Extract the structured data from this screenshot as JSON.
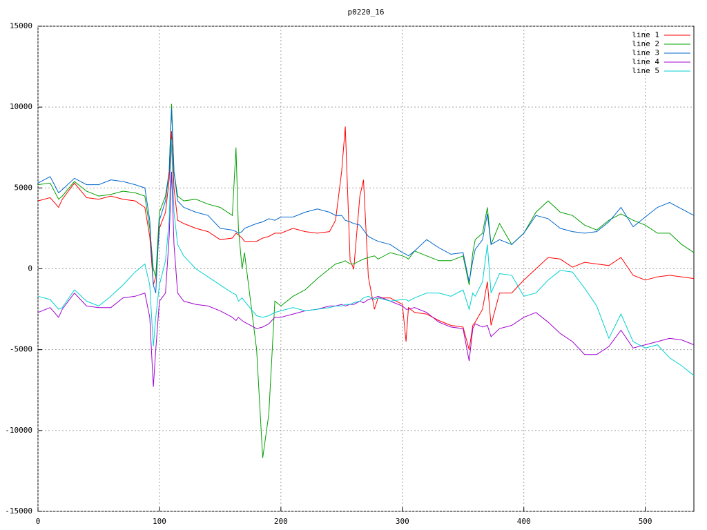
{
  "chart_data": {
    "type": "line",
    "title": "p0220_16",
    "x": [
      0,
      10,
      17,
      20,
      30,
      40,
      50,
      60,
      70,
      80,
      88,
      92,
      95,
      97,
      100,
      105,
      108,
      110,
      112,
      115,
      120,
      130,
      140,
      150,
      160,
      163,
      165,
      168,
      170,
      180,
      185,
      190,
      195,
      200,
      210,
      220,
      230,
      240,
      245,
      250,
      253,
      257,
      260,
      265,
      268,
      272,
      277,
      280,
      290,
      300,
      303,
      305,
      310,
      320,
      330,
      340,
      350,
      355,
      358,
      360,
      366,
      370,
      373,
      380,
      390,
      400,
      410,
      420,
      430,
      440,
      450,
      460,
      470,
      480,
      490,
      500,
      510,
      520,
      530,
      540
    ],
    "series": [
      {
        "name": "line 1",
        "color": "#ff0000",
        "values": [
          4200,
          4400,
          3800,
          4300,
          5300,
          4400,
          4300,
          4500,
          4300,
          4200,
          3800,
          2000,
          -1000,
          -500,
          2500,
          3500,
          5500,
          8500,
          5000,
          3000,
          2800,
          2500,
          2300,
          1800,
          1900,
          2200,
          2100,
          1900,
          1700,
          1700,
          1900,
          2000,
          2200,
          2200,
          2500,
          2300,
          2200,
          2300,
          3000,
          6000,
          8800,
          500,
          0,
          4500,
          5500,
          -500,
          -2500,
          -1800,
          -1800,
          -2200,
          -4500,
          -2400,
          -2700,
          -2800,
          -3200,
          -3500,
          -3600,
          -5000,
          -3500,
          -3300,
          -2500,
          -800,
          -3500,
          -1500,
          -1500,
          -700,
          0,
          700,
          600,
          100,
          400,
          300,
          200,
          700,
          -400,
          -700,
          -500,
          -400,
          -500,
          -600
        ]
      },
      {
        "name": "line 2",
        "color": "#00a000",
        "values": [
          5200,
          5300,
          4300,
          4500,
          5400,
          4800,
          4500,
          4600,
          4800,
          4700,
          4500,
          2500,
          0,
          -500,
          3500,
          4500,
          6000,
          10200,
          6000,
          4500,
          4200,
          4300,
          4000,
          3800,
          3300,
          7500,
          2500,
          0,
          1000,
          -5000,
          -11700,
          -9000,
          -2000,
          -2300,
          -1700,
          -1300,
          -600,
          0,
          300,
          400,
          500,
          300,
          300,
          500,
          600,
          700,
          800,
          600,
          1000,
          800,
          700,
          600,
          1100,
          800,
          500,
          500,
          800,
          -1000,
          1000,
          1800,
          2200,
          3800,
          1500,
          2800,
          1500,
          2200,
          3500,
          4200,
          3500,
          3300,
          2700,
          2400,
          3000,
          3400,
          3000,
          2700,
          2200,
          2200,
          1500,
          1000
        ]
      },
      {
        "name": "line 3",
        "color": "#0066cc",
        "values": [
          5300,
          5700,
          4700,
          4900,
          5600,
          5200,
          5200,
          5500,
          5400,
          5200,
          5000,
          3000,
          -1000,
          -1500,
          3000,
          4200,
          6000,
          9900,
          6000,
          4200,
          3800,
          3500,
          3300,
          2500,
          2400,
          2300,
          2200,
          2300,
          2500,
          2800,
          2900,
          3100,
          3000,
          3200,
          3200,
          3500,
          3700,
          3500,
          3300,
          3300,
          3000,
          2900,
          2800,
          2700,
          2400,
          2000,
          1800,
          1700,
          1500,
          1000,
          900,
          800,
          1100,
          1800,
          1300,
          900,
          1000,
          -800,
          500,
          1200,
          1800,
          3400,
          1500,
          1800,
          1500,
          2200,
          3300,
          3100,
          2500,
          2300,
          2200,
          2300,
          2900,
          3800,
          2600,
          3200,
          3800,
          4100,
          3700,
          3300
        ]
      },
      {
        "name": "line 4",
        "color": "#a000d0",
        "values": [
          -2700,
          -2400,
          -3000,
          -2500,
          -1500,
          -2300,
          -2400,
          -2400,
          -1800,
          -1700,
          -1500,
          -3000,
          -7300,
          -5000,
          -2000,
          -1500,
          2000,
          6000,
          1500,
          -1500,
          -2000,
          -2200,
          -2300,
          -2600,
          -3000,
          -3200,
          -3000,
          -3200,
          -3300,
          -3700,
          -3600,
          -3400,
          -3000,
          -3000,
          -2800,
          -2600,
          -2500,
          -2300,
          -2300,
          -2200,
          -2300,
          -2200,
          -2200,
          -2000,
          -2100,
          -1900,
          -1800,
          -1700,
          -2000,
          -2300,
          -2500,
          -2500,
          -2400,
          -2700,
          -3300,
          -3600,
          -3700,
          -5700,
          -3700,
          -3400,
          -3600,
          -3500,
          -4200,
          -3700,
          -3500,
          -3000,
          -2700,
          -3300,
          -4000,
          -4500,
          -5300,
          -5300,
          -4800,
          -3800,
          -4900,
          -4700,
          -4500,
          -4300,
          -4400,
          -4700
        ]
      },
      {
        "name": "line 5",
        "color": "#00d0d0",
        "values": [
          -1700,
          -1900,
          -2500,
          -2400,
          -1300,
          -2000,
          -2300,
          -1700,
          -1000,
          -200,
          300,
          -1000,
          -4800,
          -3000,
          -1000,
          500,
          3000,
          8000,
          3500,
          1500,
          800,
          0,
          -500,
          -1000,
          -1500,
          -1600,
          -2000,
          -1800,
          -2000,
          -2900,
          -3000,
          -2900,
          -2700,
          -2600,
          -2400,
          -2600,
          -2500,
          -2400,
          -2300,
          -2300,
          -2200,
          -2200,
          -2100,
          -2000,
          -1800,
          -1700,
          -1900,
          -1800,
          -2000,
          -1900,
          -1900,
          -2000,
          -1800,
          -1500,
          -1500,
          -1700,
          -1300,
          -2500,
          -1500,
          -1700,
          -800,
          1500,
          -1500,
          -300,
          -400,
          -1700,
          -1500,
          -700,
          -100,
          -200,
          -1200,
          -2300,
          -4300,
          -2800,
          -4500,
          -4900,
          -4700,
          -5500,
          -6000,
          -6600
        ]
      }
    ],
    "xlim": [
      0,
      540
    ],
    "xticks": [
      0,
      100,
      200,
      300,
      400,
      500
    ],
    "ylim": [
      -15000,
      15000
    ],
    "yticks": [
      -15000,
      -10000,
      -5000,
      0,
      5000,
      10000,
      15000
    ],
    "grid": true,
    "legend": "top-right"
  }
}
